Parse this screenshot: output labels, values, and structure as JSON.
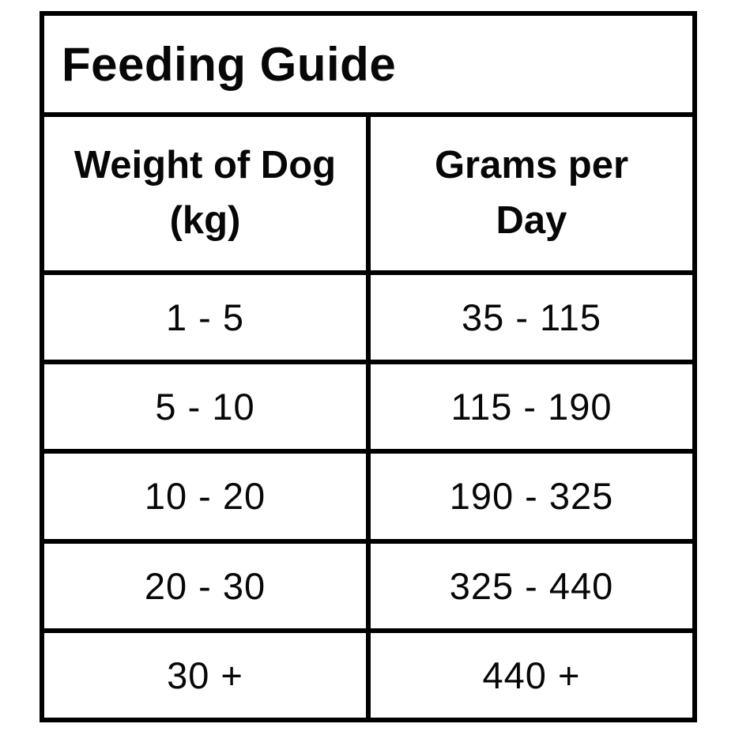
{
  "title": "Feeding Guide",
  "table": {
    "headers": [
      {
        "line1": "Weight of Dog",
        "line2": "(kg)"
      },
      {
        "line1": "Grams per",
        "line2": "Day"
      }
    ],
    "rows": [
      {
        "weight": "1 - 5",
        "grams": "35 - 115"
      },
      {
        "weight": "5 - 10",
        "grams": "115 - 190"
      },
      {
        "weight": "10 - 20",
        "grams": "190 - 325"
      },
      {
        "weight": "20 - 30",
        "grams": "325 - 440"
      },
      {
        "weight": "30 +",
        "grams": "440 +"
      }
    ]
  },
  "colors": {
    "border": "#000000",
    "background": "#ffffff",
    "text": "#070707"
  },
  "chart_data": {
    "type": "table",
    "title": "Feeding Guide",
    "columns": [
      "Weight of Dog (kg)",
      "Grams per Day"
    ],
    "rows": [
      [
        "1 - 5",
        "35 - 115"
      ],
      [
        "5 - 10",
        "115 - 190"
      ],
      [
        "10 - 20",
        "190 - 325"
      ],
      [
        "20 - 30",
        "325 - 440"
      ],
      [
        "30 +",
        "440 +"
      ]
    ]
  }
}
